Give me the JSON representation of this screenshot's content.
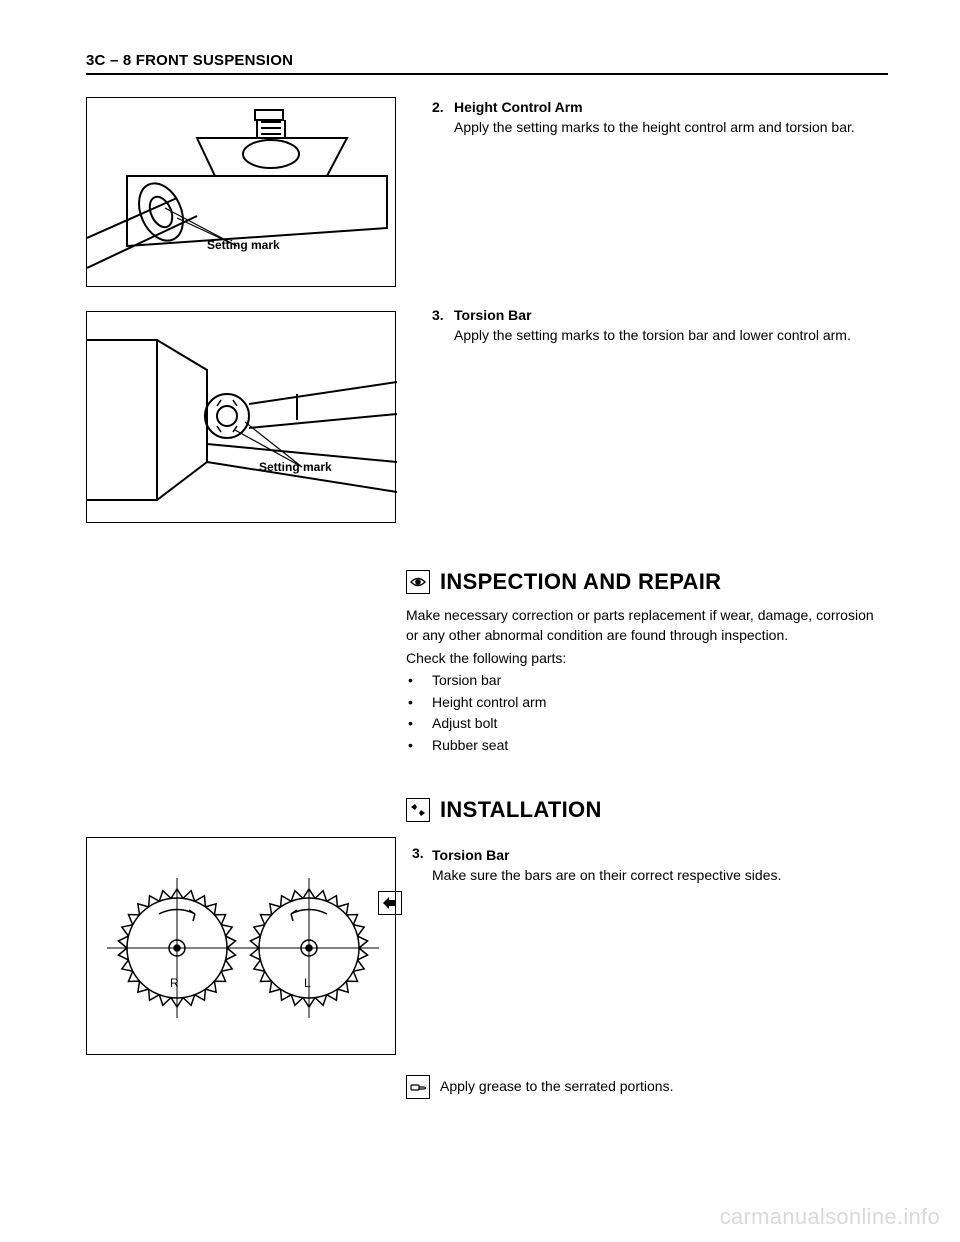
{
  "header": "3C – 8  FRONT SUSPENSION",
  "fig1_label": "Setting mark",
  "fig2_label": "Setting mark",
  "fig3_R": "R",
  "fig3_L": "L",
  "step2": {
    "num": "2.",
    "title": "Height Control Arm",
    "body": "Apply the setting marks to the height control arm and torsion bar."
  },
  "step3a": {
    "num": "3.",
    "title": "Torsion Bar",
    "body": "Apply the setting marks to the torsion bar and lower control arm."
  },
  "inspection": {
    "heading": "INSPECTION AND REPAIR",
    "para1": "Make necessary correction or parts replacement if wear, damage, corrosion or any other abnormal condition are found through inspection.",
    "para2": "Check the following parts:",
    "bullets": [
      "Torsion bar",
      "Height control arm",
      "Adjust bolt",
      "Rubber seat"
    ]
  },
  "installation": {
    "heading": "INSTALLATION",
    "step3": {
      "num": "3.",
      "title": "Torsion Bar",
      "body": "Make sure the bars are on their correct respective sides."
    },
    "apply": "Apply grease to the serrated portions."
  },
  "watermark": "carmanualsonline.info",
  "colors": {
    "line": "#000000",
    "bg": "#ffffff"
  }
}
